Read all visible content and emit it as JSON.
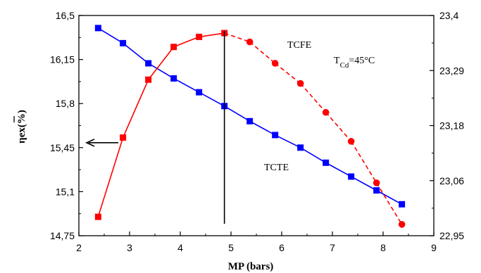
{
  "chart_data": {
    "type": "line",
    "xlabel": "MP (bars)",
    "ylabel_left": "ηex(%)",
    "xlim": [
      2,
      9
    ],
    "x_ticks": [
      "2",
      "3",
      "4",
      "5",
      "6",
      "7",
      "8",
      "9"
    ],
    "ylim_left": [
      14.75,
      16.5
    ],
    "y_left_ticks": [
      "14,75",
      "15,1",
      "15,45",
      "15,8",
      "16,15",
      "16,5"
    ],
    "ylim_right": [
      22.95,
      23.4
    ],
    "y_right_ticks": [
      "22,95",
      "23,06",
      "23,18",
      "23,29",
      "23,4"
    ],
    "series": [
      {
        "name": "TCTE",
        "axis": "left",
        "color": "#0000ff",
        "line_style": "solid",
        "marker": "square",
        "x": [
          2.38,
          2.87,
          3.37,
          3.87,
          4.37,
          4.87,
          5.37,
          5.87,
          6.37,
          6.87,
          7.37,
          7.87,
          8.37
        ],
        "y": [
          16.4,
          16.28,
          16.12,
          16.0,
          15.89,
          15.78,
          15.66,
          15.55,
          15.45,
          15.33,
          15.22,
          15.11,
          15.0
        ]
      },
      {
        "name": "TCFE",
        "axis": "left",
        "color": "#ff0000",
        "line_style": "mixed",
        "marker": "square/circle",
        "x": [
          2.38,
          2.87,
          3.37,
          3.87,
          4.37,
          4.87,
          5.37,
          5.87,
          6.37,
          6.87,
          7.37,
          7.87,
          8.37
        ],
        "y": [
          14.9,
          15.53,
          15.99,
          16.25,
          16.33,
          16.36,
          16.29,
          16.12,
          15.96,
          15.73,
          15.5,
          15.17,
          14.84
        ]
      }
    ],
    "annotations": {
      "tcfe": "TCFE",
      "tcte": "TCTE",
      "temp_prefix": "T",
      "temp_sub": "Cd",
      "temp_value": "=45°C"
    },
    "vertical_line_x": 4.87,
    "arrow_y": 15.5,
    "grid": false
  }
}
